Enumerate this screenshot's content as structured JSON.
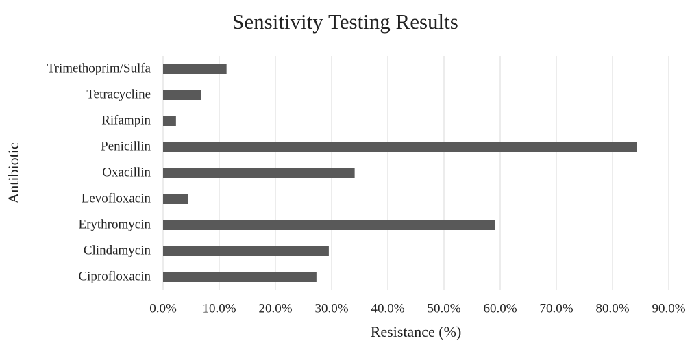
{
  "chart_data": {
    "type": "bar",
    "orientation": "horizontal",
    "title": "Sensitivity Testing Results",
    "x_label": "Resistance (%)",
    "y_label": "Antibiotic",
    "categories": [
      "Trimethoprim/Sulfa",
      "Tetracycline",
      "Rifampin",
      "Penicillin",
      "Oxacillin",
      "Levofloxacin",
      "Erythromycin",
      "Clindamycin",
      "Ciprofloxacin"
    ],
    "values": [
      11.3,
      6.8,
      2.3,
      84.3,
      34.1,
      4.5,
      59.1,
      29.5,
      27.3
    ],
    "color": "#595959",
    "xlim": [
      0,
      90
    ],
    "xticks": [
      {
        "value": 0,
        "label": "0.0%"
      },
      {
        "value": 10,
        "label": "10.0%"
      },
      {
        "value": 20,
        "label": "20.0%"
      },
      {
        "value": 30,
        "label": "30.0%"
      },
      {
        "value": 40,
        "label": "40.0%"
      },
      {
        "value": 50,
        "label": "50.0%"
      },
      {
        "value": 60,
        "label": "60.0%"
      },
      {
        "value": 70,
        "label": "70.0%"
      },
      {
        "value": 80,
        "label": "80.0%"
      },
      {
        "value": 90,
        "label": "90.0%"
      }
    ],
    "grid": true
  }
}
